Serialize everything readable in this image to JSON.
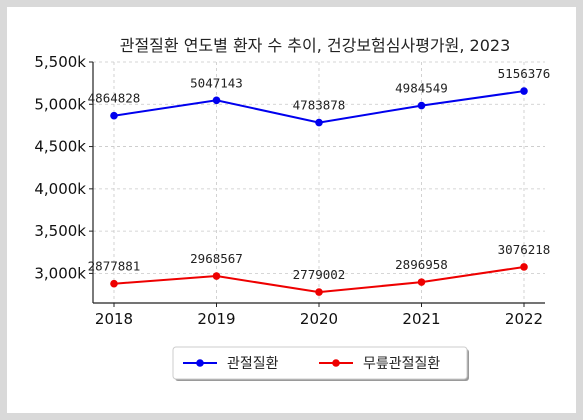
{
  "chart_data": {
    "type": "line",
    "title": "관절질환 연도별 환자 수 추이, 건강보험심사평가원, 2023",
    "xlabel": "",
    "ylabel": "",
    "categories": [
      "2018",
      "2019",
      "2020",
      "2021",
      "2022"
    ],
    "ylim": [
      2650000,
      5500000
    ],
    "y_ticks": [
      3000000,
      3500000,
      4000000,
      4500000,
      5000000,
      5500000
    ],
    "y_tick_labels": [
      "3,000k",
      "3,500k",
      "4,000k",
      "4,500k",
      "5,000k",
      "5,500k"
    ],
    "grid": true,
    "legend_position": "bottom-center",
    "series": [
      {
        "name": "관절질환",
        "color": "#0000ee",
        "values": [
          4864828,
          5047143,
          4783878,
          4984549,
          5156376
        ],
        "labels": [
          "4864828",
          "5047143",
          "4783878",
          "4984549",
          "5156376"
        ]
      },
      {
        "name": "무릎관절질환",
        "color": "#ee0000",
        "values": [
          2877881,
          2968567,
          2779002,
          2896958,
          3076218
        ],
        "labels": [
          "2877881",
          "2968567",
          "2779002",
          "2896958",
          "3076218"
        ]
      }
    ]
  }
}
